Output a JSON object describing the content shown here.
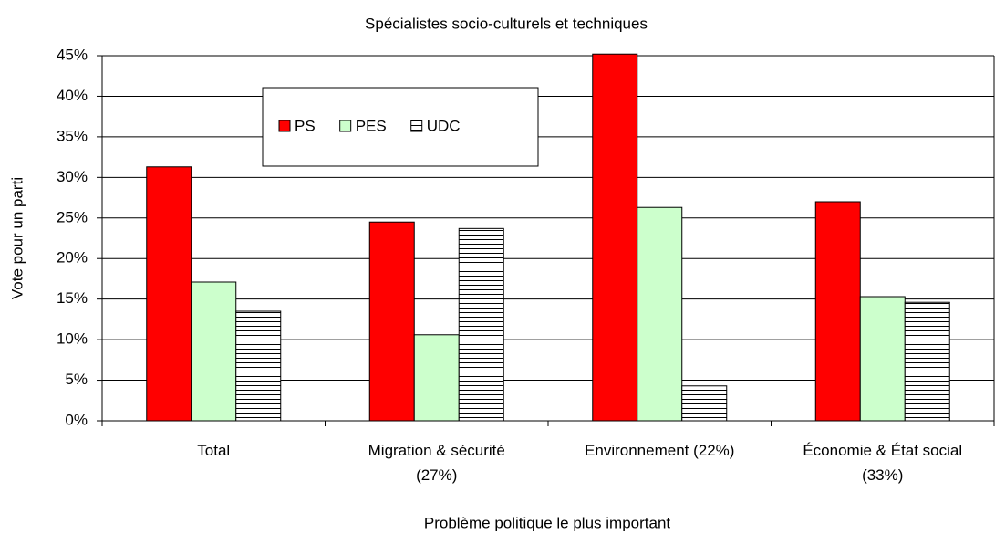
{
  "chart_data": {
    "type": "bar",
    "title": "Spécialistes socio-culturels et techniques",
    "xlabel": "Problème politique le plus important",
    "ylabel": "Vote pour un parti",
    "categories": [
      "Total",
      "Migration & sécurité (27%)",
      "Environnement (22%)",
      "Économie & État social (33%)"
    ],
    "series": [
      {
        "name": "PS",
        "color": "#ff0000",
        "values": [
          31.3,
          24.5,
          45.2,
          27.0
        ]
      },
      {
        "name": "PES",
        "color": "#ccffcc",
        "values": [
          17.1,
          10.6,
          26.3,
          15.3
        ]
      },
      {
        "name": "UDC",
        "color": "#ffffff",
        "hatch": "horizontal",
        "values": [
          13.5,
          23.7,
          4.3,
          14.6
        ]
      }
    ],
    "ylim": [
      0,
      45
    ],
    "yticks": [
      {
        "value": 0,
        "label": "0%"
      },
      {
        "value": 5,
        "label": "5%"
      },
      {
        "value": 10,
        "label": "10%"
      },
      {
        "value": 15,
        "label": "15%"
      },
      {
        "value": 20,
        "label": "20%"
      },
      {
        "value": 25,
        "label": "25%"
      },
      {
        "value": 30,
        "label": "30%"
      },
      {
        "value": 35,
        "label": "35%"
      },
      {
        "value": 40,
        "label": "40%"
      },
      {
        "value": 45,
        "label": "45%"
      }
    ],
    "grid": true,
    "legend": "top-left"
  }
}
